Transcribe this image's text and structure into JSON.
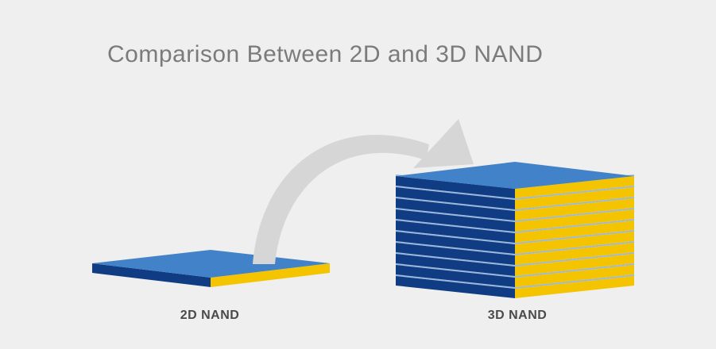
{
  "title": "Comparison Between 2D and 3D NAND",
  "labels": {
    "nand_2d": "2D NAND",
    "nand_3d": "3D NAND"
  },
  "stack": {
    "layers_2d": 1,
    "layers_3d": 10
  },
  "colors": {
    "background": "#efefef",
    "top_face": "#4282c8",
    "front_left_face": "#0f3c82",
    "front_right_face": "#f5c400",
    "layer_separator": "#9ab8de",
    "arrow": "#d6d6d6",
    "title_text": "#7b7b7b",
    "label_text": "#4a4a4a"
  }
}
